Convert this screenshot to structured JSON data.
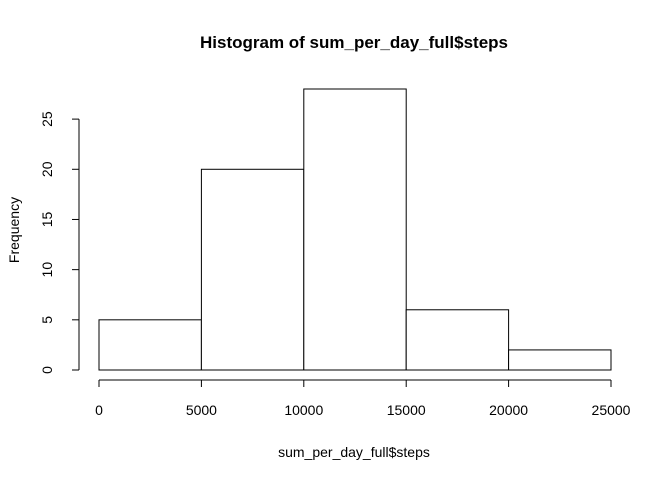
{
  "chart_data": {
    "type": "bar",
    "title": "Histogram of sum_per_day_full$steps",
    "xlabel": "sum_per_day_full$steps",
    "ylabel": "Frequency",
    "bins": [
      {
        "start": 0,
        "end": 5000,
        "count": 5
      },
      {
        "start": 5000,
        "end": 10000,
        "count": 20
      },
      {
        "start": 10000,
        "end": 15000,
        "count": 28
      },
      {
        "start": 15000,
        "end": 20000,
        "count": 6
      },
      {
        "start": 20000,
        "end": 25000,
        "count": 2
      }
    ],
    "xlim": [
      0,
      25000
    ],
    "ylim": [
      0,
      28
    ],
    "x_ticks": [
      0,
      5000,
      10000,
      15000,
      20000,
      25000
    ],
    "y_ticks": [
      0,
      5,
      10,
      15,
      20,
      25
    ],
    "grid": false,
    "legend": "none",
    "colors": {
      "bar_fill": "#ffffff",
      "bar_stroke": "#000000"
    }
  }
}
